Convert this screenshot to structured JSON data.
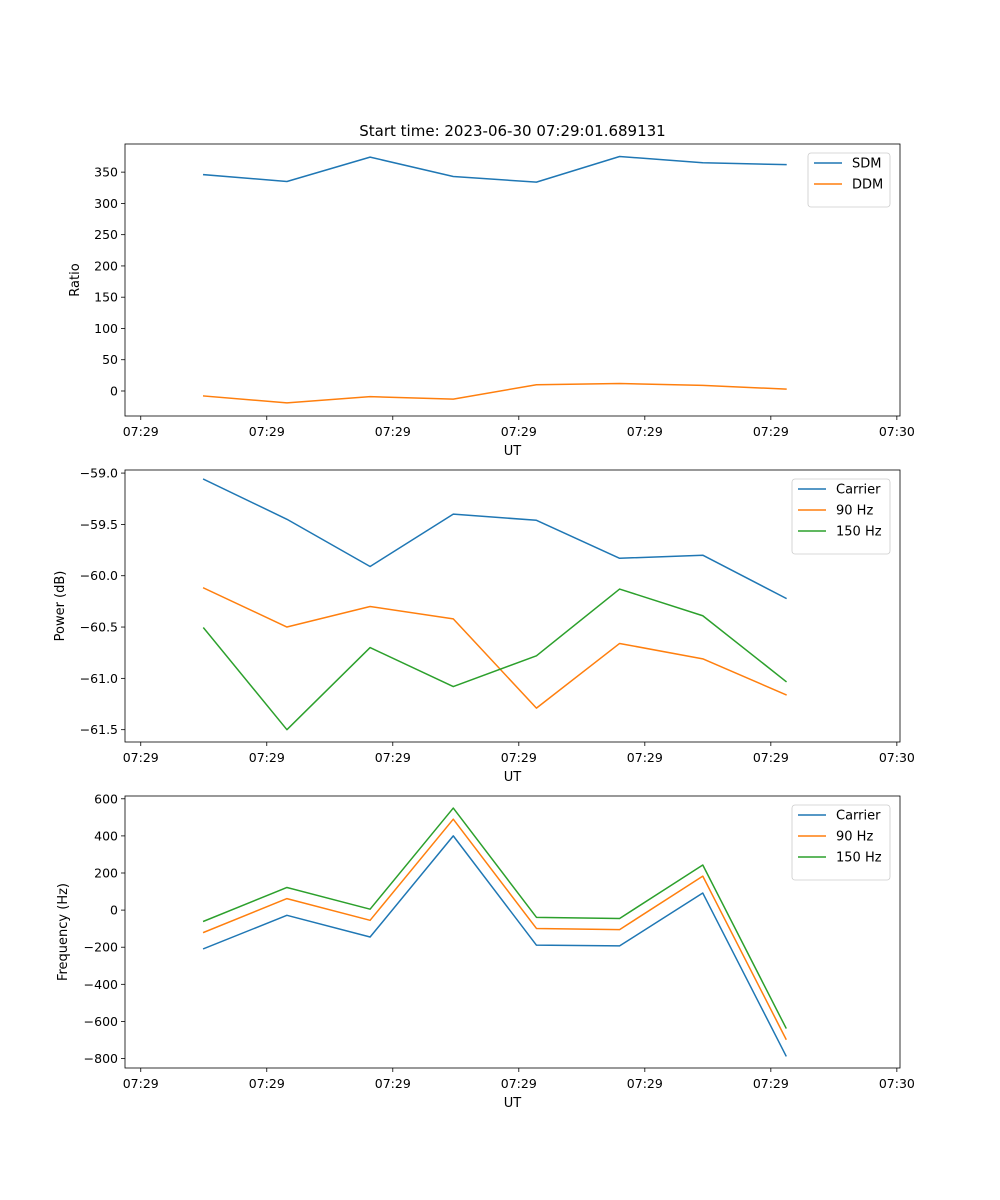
{
  "chart_data": [
    {
      "type": "line",
      "title": "Start time: 2023-06-30 07:29:01.689131",
      "xlabel": "UT",
      "ylabel": "Ratio",
      "x_tick_labels": [
        "07:29",
        "07:29",
        "07:29",
        "07:29",
        "07:29",
        "07:29",
        "07:30"
      ],
      "x_tick_positions": [
        0,
        10,
        20,
        30,
        40,
        50,
        60
      ],
      "xlim": [
        -1.25,
        60.25
      ],
      "x": [
        5,
        11.6,
        18.2,
        24.8,
        31.4,
        38,
        44.6,
        51.2
      ],
      "yticks": [
        0,
        50,
        100,
        150,
        200,
        250,
        300,
        350
      ],
      "ylim": [
        -40,
        395
      ],
      "legend_position": "upper right",
      "series": [
        {
          "name": "SDM",
          "color": "#1f77b4",
          "values": [
            346,
            335,
            374,
            343,
            334,
            375,
            365,
            362
          ]
        },
        {
          "name": "DDM",
          "color": "#ff7f0e",
          "values": [
            -8,
            -19,
            -9,
            -13,
            10,
            12,
            9,
            3
          ]
        }
      ]
    },
    {
      "type": "line",
      "xlabel": "UT",
      "ylabel": "Power (dB)",
      "x_tick_labels": [
        "07:29",
        "07:29",
        "07:29",
        "07:29",
        "07:29",
        "07:29",
        "07:30"
      ],
      "x_tick_positions": [
        0,
        10,
        20,
        30,
        40,
        50,
        60
      ],
      "xlim": [
        -1.25,
        60.25
      ],
      "x": [
        5,
        11.6,
        18.2,
        24.8,
        31.4,
        38,
        44.6,
        51.2
      ],
      "yticks": [
        -61.5,
        -61.0,
        -60.5,
        -60.0,
        -59.5,
        -59.0
      ],
      "ytick_labels": [
        "−61.5",
        "−61.0",
        "−60.5",
        "−60.0",
        "−59.5",
        "−59.0"
      ],
      "ylim": [
        -61.62,
        -58.97
      ],
      "legend_position": "upper right",
      "series": [
        {
          "name": "Carrier",
          "color": "#1f77b4",
          "values": [
            -59.06,
            -59.45,
            -59.91,
            -59.4,
            -59.46,
            -59.83,
            -59.8,
            -60.22
          ]
        },
        {
          "name": "90 Hz",
          "color": "#ff7f0e",
          "values": [
            -60.12,
            -60.5,
            -60.3,
            -60.42,
            -61.29,
            -60.66,
            -60.81,
            -61.16
          ]
        },
        {
          "name": "150 Hz",
          "color": "#2ca02c",
          "values": [
            -60.51,
            -61.5,
            -60.7,
            -61.08,
            -60.78,
            -60.13,
            -60.39,
            -61.03
          ]
        }
      ]
    },
    {
      "type": "line",
      "xlabel": "UT",
      "ylabel": "Frequency (Hz)",
      "x_tick_labels": [
        "07:29",
        "07:29",
        "07:29",
        "07:29",
        "07:29",
        "07:29",
        "07:30"
      ],
      "x_tick_positions": [
        0,
        10,
        20,
        30,
        40,
        50,
        60
      ],
      "xlim": [
        -1.25,
        60.25
      ],
      "x": [
        5,
        11.6,
        18.2,
        24.8,
        31.4,
        38,
        44.6,
        51.2
      ],
      "yticks": [
        -800,
        -600,
        -400,
        -200,
        0,
        200,
        400,
        600
      ],
      "ytick_labels": [
        "−800",
        "−600",
        "−400",
        "−200",
        "0",
        "200",
        "400",
        "600"
      ],
      "ylim": [
        -851,
        615
      ],
      "legend_position": "upper right",
      "series": [
        {
          "name": "Carrier",
          "color": "#1f77b4",
          "values": [
            -208,
            -28,
            -145,
            400,
            -189,
            -193,
            92,
            -785
          ]
        },
        {
          "name": "90 Hz",
          "color": "#ff7f0e",
          "values": [
            -120,
            62,
            -55,
            490,
            -99,
            -105,
            183,
            -695
          ]
        },
        {
          "name": "150 Hz",
          "color": "#2ca02c",
          "values": [
            -60,
            122,
            5,
            550,
            -39,
            -45,
            243,
            -635
          ]
        }
      ]
    }
  ]
}
